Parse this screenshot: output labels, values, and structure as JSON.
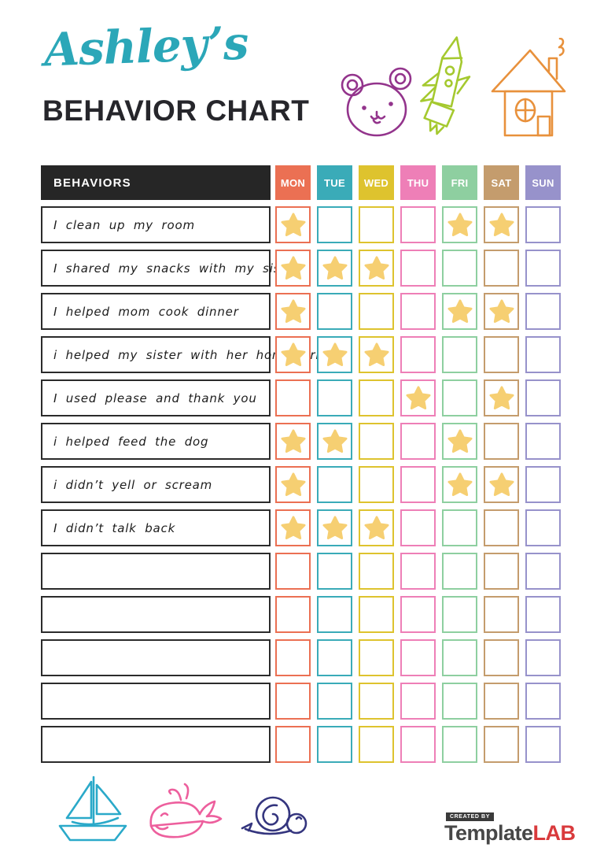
{
  "page": {
    "title_script": "Ashley’s",
    "title_main": "BEHAVIOR CHART",
    "accent_color": "#2ba7b8"
  },
  "table": {
    "behaviors_header": "BEHAVIORS",
    "header_bg": "#262626",
    "star_color": "#f6cf72",
    "days": [
      {
        "label": "MON",
        "color": "#eb7053"
      },
      {
        "label": "TUE",
        "color": "#3aabb8"
      },
      {
        "label": "WED",
        "color": "#dec32e"
      },
      {
        "label": "THU",
        "color": "#ee7fb7"
      },
      {
        "label": "FRI",
        "color": "#8ecfa0"
      },
      {
        "label": "SAT",
        "color": "#c49c6d"
      },
      {
        "label": "SUN",
        "color": "#9792cb"
      }
    ],
    "rows": [
      {
        "label": "I clean up my room",
        "stars": [
          1,
          0,
          0,
          0,
          1,
          1,
          0
        ]
      },
      {
        "label": "I shared my snacks with my sister",
        "stars": [
          1,
          1,
          1,
          0,
          0,
          0,
          0
        ]
      },
      {
        "label": "I helped mom cook dinner",
        "stars": [
          1,
          0,
          0,
          0,
          1,
          1,
          0
        ]
      },
      {
        "label": "i helped my sister with her homework",
        "stars": [
          1,
          1,
          1,
          0,
          0,
          0,
          0
        ]
      },
      {
        "label": "I used please and thank you",
        "stars": [
          0,
          0,
          0,
          1,
          0,
          1,
          0
        ]
      },
      {
        "label": "i helped feed the dog",
        "stars": [
          1,
          1,
          0,
          0,
          1,
          0,
          0
        ]
      },
      {
        "label": "i didn’t yell or scream",
        "stars": [
          1,
          0,
          0,
          0,
          1,
          1,
          0
        ]
      },
      {
        "label": "I didn’t talk back",
        "stars": [
          1,
          1,
          1,
          0,
          0,
          0,
          0
        ]
      },
      {
        "label": "",
        "stars": [
          0,
          0,
          0,
          0,
          0,
          0,
          0
        ]
      },
      {
        "label": "",
        "stars": [
          0,
          0,
          0,
          0,
          0,
          0,
          0
        ]
      },
      {
        "label": "",
        "stars": [
          0,
          0,
          0,
          0,
          0,
          0,
          0
        ]
      },
      {
        "label": "",
        "stars": [
          0,
          0,
          0,
          0,
          0,
          0,
          0
        ]
      },
      {
        "label": "",
        "stars": [
          0,
          0,
          0,
          0,
          0,
          0,
          0
        ]
      }
    ]
  },
  "doodles": {
    "bear": {
      "color": "#93348c"
    },
    "rocket": {
      "color": "#a5c92f"
    },
    "house": {
      "color": "#e8913c"
    },
    "sailboat": {
      "color": "#2aa9c9"
    },
    "whale": {
      "color": "#ed5f9d"
    },
    "snail": {
      "color": "#34357e"
    }
  },
  "footer_logo": {
    "created_by": "CREATED BY",
    "brand_first": "Template",
    "brand_second": "LAB",
    "brand_first_color": "#474747",
    "brand_second_color": "#d93a3c"
  }
}
